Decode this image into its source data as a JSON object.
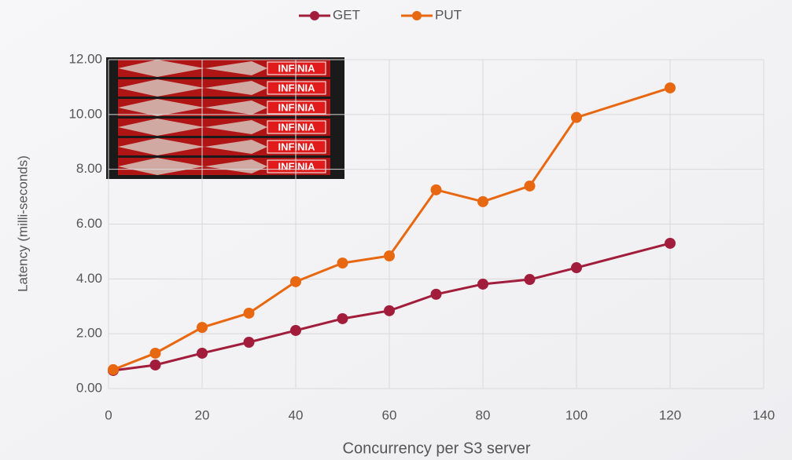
{
  "chart_data": {
    "type": "line",
    "x_label": "Concurrency per S3 server",
    "y_label": "Latency (milli-seconds)",
    "image_text": "INFINIA",
    "x": [
      1,
      10,
      20,
      30,
      40,
      50,
      60,
      70,
      80,
      90,
      100,
      120
    ],
    "series": [
      {
        "name": "GET",
        "color": "#a21d3c",
        "values": [
          0.66,
          0.86,
          1.29,
          1.69,
          2.12,
          2.55,
          2.84,
          3.44,
          3.81,
          3.98,
          4.41,
          5.3
        ]
      },
      {
        "name": "PUT",
        "color": "#e86812",
        "values": [
          0.69,
          1.29,
          2.23,
          2.75,
          3.9,
          4.58,
          4.84,
          7.25,
          6.82,
          7.39,
          9.89,
          10.97
        ]
      }
    ],
    "xlim": [
      0,
      140
    ],
    "xticks": [
      0,
      20,
      40,
      60,
      80,
      100,
      120,
      140
    ],
    "ylim": [
      0,
      12
    ],
    "yticks": [
      {
        "value": 0,
        "label": "0.00"
      },
      {
        "value": 2,
        "label": "2.00"
      },
      {
        "value": 4,
        "label": "4.00"
      },
      {
        "value": 6,
        "label": "6.00"
      },
      {
        "value": 8,
        "label": "8.00"
      },
      {
        "value": 10,
        "label": "10.00"
      },
      {
        "value": 12,
        "label": "12.00"
      }
    ],
    "grid": true,
    "legend": "top"
  }
}
